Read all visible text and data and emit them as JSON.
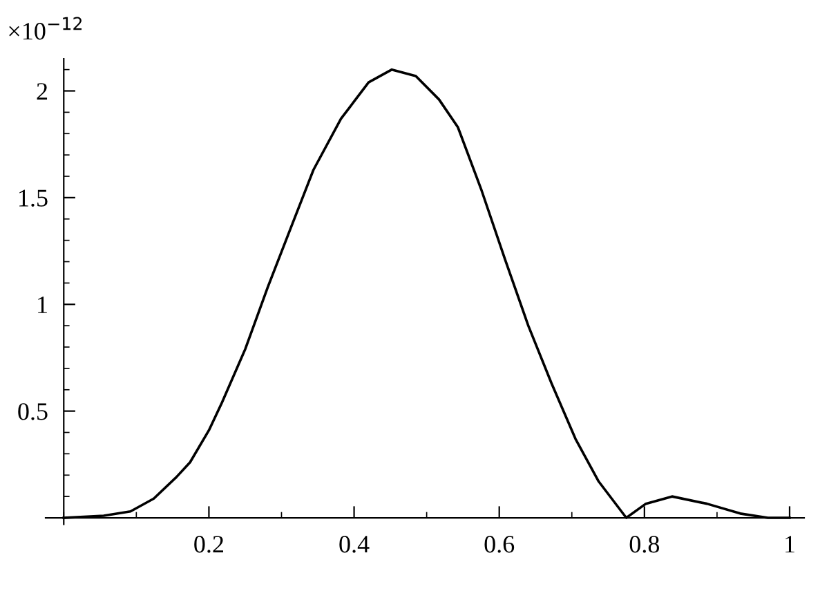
{
  "chart_data": {
    "type": "line",
    "annotations": [
      "×10$^{−12}$"
    ],
    "x": [
      0.0,
      0.055,
      0.092,
      0.124,
      0.155,
      0.174,
      0.2,
      0.218,
      0.25,
      0.281,
      0.313,
      0.344,
      0.382,
      0.42,
      0.452,
      0.485,
      0.517,
      0.543,
      0.575,
      0.608,
      0.64,
      0.672,
      0.705,
      0.737,
      0.775,
      0.802,
      0.838,
      0.886,
      0.932,
      0.97,
      1.0
    ],
    "series": [
      {
        "color": "#000000",
        "values": [
          0.0,
          0.01,
          0.03,
          0.09,
          0.19,
          0.26,
          0.41,
          0.54,
          0.79,
          1.08,
          1.36,
          1.63,
          1.87,
          2.04,
          2.1,
          2.07,
          1.96,
          1.83,
          1.54,
          1.21,
          0.9,
          0.63,
          0.37,
          0.17,
          0.0,
          0.066,
          0.1,
          0.066,
          0.02,
          0.0,
          0.0
        ]
      }
    ],
    "xlim": [
      -0.025,
      1.02
    ],
    "ylim": [
      -0.03,
      2.15
    ],
    "xticks": [
      0.2,
      0.4,
      0.6,
      0.8,
      1
    ],
    "yticks": [
      0.5,
      1,
      1.5,
      2
    ],
    "grid": false,
    "legend": false,
    "marker": "none",
    "line_style": "solid"
  }
}
